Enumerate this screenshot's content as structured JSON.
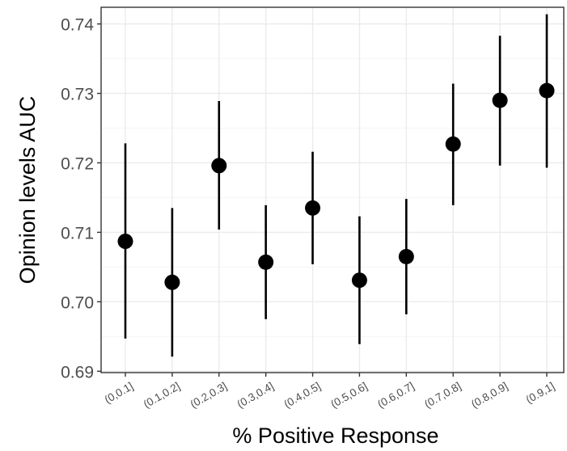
{
  "chart_data": {
    "type": "scatter",
    "subtype": "point-with-errorbars",
    "title": "",
    "xlabel": "% Positive Response",
    "ylabel": "Opinion levels AUC",
    "categories": [
      "(0,0.1]",
      "(0.1,0.2]",
      "(0.2,0.3]",
      "(0.3,0.4]",
      "(0.4,0.5]",
      "(0.5,0.6]",
      "(0.6,0.7]",
      "(0.7,0.8]",
      "(0.8,0.9]",
      "(0.9,1]"
    ],
    "values": [
      0.7087,
      0.7028,
      0.7196,
      0.7057,
      0.7135,
      0.7031,
      0.7065,
      0.7227,
      0.729,
      0.7304
    ],
    "lower": [
      0.6947,
      0.6921,
      0.7104,
      0.6975,
      0.7054,
      0.6939,
      0.6982,
      0.7139,
      0.7196,
      0.7193
    ],
    "upper": [
      0.7228,
      0.7135,
      0.7289,
      0.7139,
      0.7216,
      0.7123,
      0.7148,
      0.7314,
      0.7383,
      0.7414
    ],
    "ylim": [
      0.6898,
      0.7424
    ],
    "yticks": [
      "0.69",
      "0.70",
      "0.71",
      "0.72",
      "0.73",
      "0.74"
    ],
    "grid": true,
    "colors": {
      "point": "#000000",
      "errorbar": "#000000",
      "grid_major": "#ebebeb",
      "grid_minor": "#f5f5f5",
      "panel_border": "#333333",
      "background": "#ffffff",
      "tick_text": "#4d4d4d"
    }
  }
}
